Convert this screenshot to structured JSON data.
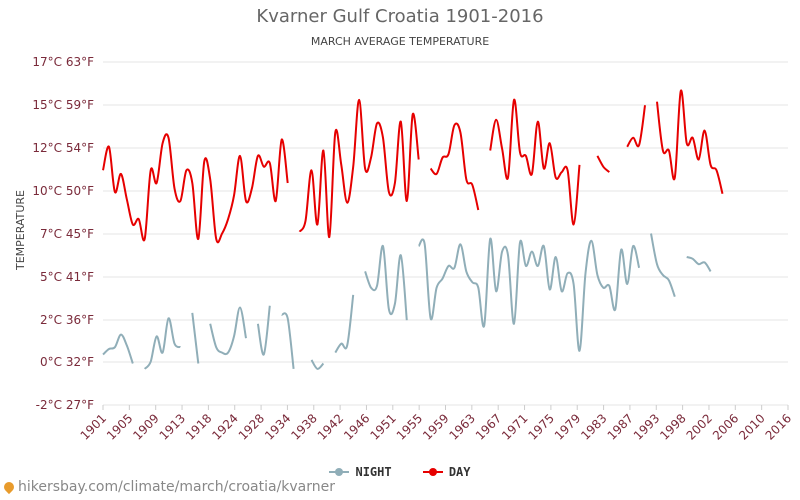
{
  "colors": {
    "day": "#e60000",
    "night": "#90aeb8",
    "grid": "#e4e4e4",
    "axis_text": "#7a2a3a"
  },
  "footer": {
    "url": "hikersbay.com/climate/march/croatia/kvarner"
  },
  "chart_data": {
    "type": "line",
    "title": "Kvarner Gulf Croatia 1901-2016",
    "subtitle": "MARCH AVERAGE TEMPERATURE",
    "ylabel": "TEMPERATURE",
    "ylim": [
      -2,
      17
    ],
    "grid": true,
    "legend_placement": "bottom-center",
    "y_ticks": [
      {
        "value": -2,
        "label": "-2°C 27°F"
      },
      {
        "value": 0,
        "label": "0°C 32°F"
      },
      {
        "value": 2,
        "label": "2°C 36°F"
      },
      {
        "value": 5,
        "label": "5°C 41°F"
      },
      {
        "value": 7,
        "label": "7°C 45°F"
      },
      {
        "value": 10,
        "label": "10°C 50°F"
      },
      {
        "value": 12,
        "label": "12°C 54°F"
      },
      {
        "value": 15,
        "label": "15°C 59°F"
      },
      {
        "value": 17,
        "label": "17°C 63°F"
      }
    ],
    "x_ticks": [
      "1901",
      "1905",
      "1909",
      "1913",
      "1918",
      "1924",
      "1928",
      "1934",
      "1938",
      "1942",
      "1946",
      "1951",
      "1955",
      "1959",
      "1963",
      "1967",
      "1971",
      "1975",
      "1979",
      "1983",
      "1987",
      "1993",
      "1998",
      "2002",
      "2006",
      "2010",
      "2016"
    ],
    "series": [
      {
        "name": "NIGHT",
        "color": "#90aeb8",
        "segments": [
          [
            [
              1901,
              0.8
            ],
            [
              1902,
              1.1
            ],
            [
              1903,
              1.2
            ],
            [
              1904,
              1.9
            ],
            [
              1905,
              1.3
            ],
            [
              1906,
              0.3
            ]
          ],
          [
            [
              1908,
              0.0
            ],
            [
              1909,
              0.4
            ],
            [
              1910,
              1.8
            ],
            [
              1911,
              0.9
            ],
            [
              1912,
              2.8
            ],
            [
              1913,
              1.4
            ],
            [
              1914,
              1.2
            ]
          ],
          [
            [
              1916,
              3.1
            ],
            [
              1917,
              0.3
            ]
          ],
          [
            [
              1919,
              2.5
            ],
            [
              1920,
              1.2
            ],
            [
              1921,
              0.9
            ],
            [
              1922,
              0.9
            ],
            [
              1923,
              1.8
            ],
            [
              1924,
              3.4
            ],
            [
              1925,
              1.7
            ]
          ],
          [
            [
              1927,
              2.5
            ],
            [
              1928,
              0.8
            ],
            [
              1929,
              3.5
            ]
          ],
          [
            [
              1931,
              3.0
            ],
            [
              1932,
              2.8
            ],
            [
              1933,
              0.0
            ]
          ],
          [
            [
              1936,
              0.5
            ],
            [
              1937,
              0.0
            ],
            [
              1938,
              0.3
            ]
          ],
          [
            [
              1940,
              0.9
            ],
            [
              1941,
              1.4
            ],
            [
              1942,
              1.3
            ],
            [
              1943,
              4.1
            ]
          ],
          [
            [
              1945,
              5.4
            ],
            [
              1946,
              4.5
            ],
            [
              1947,
              4.6
            ],
            [
              1948,
              6.8
            ],
            [
              1949,
              3.3
            ],
            [
              1950,
              3.6
            ],
            [
              1951,
              6.3
            ],
            [
              1952,
              2.7
            ]
          ],
          [
            [
              1954,
              6.8
            ],
            [
              1955,
              6.9
            ],
            [
              1956,
              2.8
            ],
            [
              1957,
              4.5
            ],
            [
              1958,
              5.0
            ],
            [
              1959,
              5.7
            ],
            [
              1960,
              5.6
            ],
            [
              1961,
              6.9
            ],
            [
              1962,
              5.4
            ],
            [
              1963,
              4.8
            ],
            [
              1964,
              4.5
            ],
            [
              1965,
              2.4
            ],
            [
              1966,
              7.2
            ],
            [
              1967,
              4.3
            ],
            [
              1968,
              6.5
            ],
            [
              1969,
              6.3
            ],
            [
              1970,
              2.5
            ],
            [
              1971,
              7.0
            ],
            [
              1972,
              5.7
            ],
            [
              1973,
              6.5
            ],
            [
              1974,
              5.7
            ],
            [
              1975,
              6.8
            ],
            [
              1976,
              4.4
            ],
            [
              1977,
              6.2
            ],
            [
              1978,
              4.3
            ],
            [
              1979,
              5.3
            ],
            [
              1980,
              4.7
            ],
            [
              1981,
              1.0
            ],
            [
              1982,
              5.3
            ],
            [
              1983,
              7.1
            ],
            [
              1984,
              5.2
            ],
            [
              1985,
              4.5
            ],
            [
              1986,
              4.6
            ],
            [
              1987,
              3.3
            ],
            [
              1988,
              6.6
            ],
            [
              1989,
              4.7
            ],
            [
              1990,
              6.8
            ],
            [
              1991,
              5.6
            ]
          ],
          [
            [
              1993,
              7.5
            ],
            [
              1994,
              5.8
            ],
            [
              1995,
              5.2
            ],
            [
              1996,
              4.9
            ],
            [
              1997,
              4.0
            ]
          ],
          [
            [
              1999,
              6.2
            ],
            [
              2000,
              6.1
            ],
            [
              2001,
              5.8
            ],
            [
              2002,
              5.9
            ],
            [
              2003,
              5.4
            ]
          ]
        ]
      },
      {
        "name": "DAY",
        "color": "#e60000",
        "segments": [
          [
            [
              1901,
              11.0
            ],
            [
              1902,
              12.3
            ],
            [
              1903,
              9.8
            ],
            [
              1904,
              10.8
            ],
            [
              1905,
              9.4
            ],
            [
              1906,
              8.0
            ],
            [
              1907,
              8.3
            ],
            [
              1908,
              7.2
            ],
            [
              1909,
              11.0
            ],
            [
              1910,
              10.3
            ],
            [
              1911,
              12.5
            ],
            [
              1912,
              12.8
            ],
            [
              1913,
              10.0
            ],
            [
              1914,
              9.3
            ],
            [
              1915,
              11.0
            ],
            [
              1916,
              10.3
            ],
            [
              1917,
              7.2
            ],
            [
              1918,
              11.5
            ],
            [
              1919,
              10.5
            ],
            [
              1920,
              7.2
            ],
            [
              1921,
              7.5
            ],
            [
              1922,
              8.3
            ],
            [
              1923,
              9.6
            ],
            [
              1924,
              11.8
            ],
            [
              1925,
              9.3
            ],
            [
              1926,
              10.0
            ],
            [
              1927,
              11.8
            ],
            [
              1928,
              11.2
            ],
            [
              1929,
              11.4
            ],
            [
              1930,
              9.3
            ],
            [
              1931,
              12.7
            ],
            [
              1932,
              10.3
            ]
          ],
          [
            [
              1934,
              7.6
            ],
            [
              1935,
              8.2
            ],
            [
              1936,
              11.0
            ],
            [
              1937,
              8.0
            ],
            [
              1938,
              12.1
            ],
            [
              1939,
              7.3
            ],
            [
              1940,
              13.1
            ],
            [
              1941,
              11.3
            ],
            [
              1942,
              9.2
            ],
            [
              1943,
              11.2
            ],
            [
              1944,
              14.9
            ],
            [
              1945,
              11.1
            ],
            [
              1946,
              11.7
            ],
            [
              1947,
              13.6
            ],
            [
              1948,
              12.8
            ],
            [
              1949,
              9.8
            ],
            [
              1950,
              10.3
            ],
            [
              1951,
              13.7
            ],
            [
              1952,
              9.3
            ],
            [
              1953,
              14.1
            ],
            [
              1954,
              11.6
            ]
          ],
          [
            [
              1956,
              11.1
            ],
            [
              1957,
              10.8
            ],
            [
              1958,
              11.7
            ],
            [
              1959,
              11.9
            ],
            [
              1960,
              13.5
            ],
            [
              1961,
              13.1
            ],
            [
              1962,
              10.5
            ],
            [
              1963,
              10.2
            ],
            [
              1964,
              8.8
            ]
          ],
          [
            [
              1966,
              12.1
            ],
            [
              1967,
              13.8
            ],
            [
              1968,
              12.2
            ],
            [
              1969,
              10.6
            ],
            [
              1970,
              14.9
            ],
            [
              1971,
              12.0
            ],
            [
              1972,
              11.8
            ],
            [
              1973,
              10.8
            ],
            [
              1974,
              13.7
            ],
            [
              1975,
              11.1
            ],
            [
              1976,
              12.5
            ],
            [
              1977,
              10.6
            ],
            [
              1978,
              10.9
            ],
            [
              1979,
              11.0
            ],
            [
              1980,
              8.0
            ],
            [
              1981,
              11.3
            ]
          ],
          [
            [
              1984,
              11.8
            ],
            [
              1985,
              11.2
            ],
            [
              1986,
              10.9
            ]
          ],
          [
            [
              1989,
              12.3
            ],
            [
              1990,
              12.8
            ],
            [
              1991,
              12.4
            ],
            [
              1992,
              14.6
            ]
          ],
          [
            [
              1994,
              14.8
            ],
            [
              1995,
              12.1
            ],
            [
              1996,
              12.1
            ],
            [
              1997,
              10.6
            ],
            [
              1998,
              15.4
            ],
            [
              1999,
              12.5
            ],
            [
              2000,
              12.8
            ],
            [
              2001,
              11.6
            ],
            [
              2002,
              13.2
            ],
            [
              2003,
              11.3
            ],
            [
              2004,
              11.0
            ],
            [
              2005,
              9.7
            ]
          ]
        ]
      }
    ]
  }
}
